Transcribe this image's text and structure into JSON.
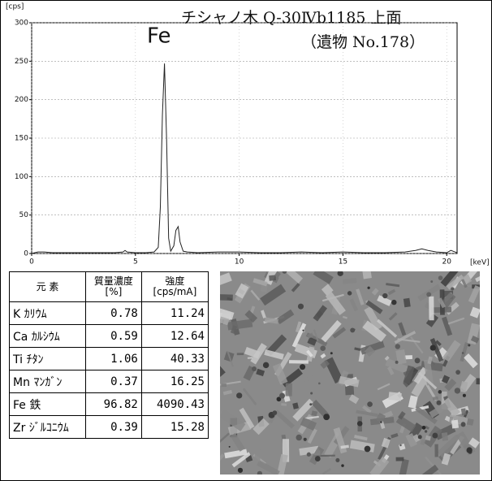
{
  "chart_data": {
    "type": "line",
    "title": "チシャノ木 Q-30Ⅳb1185 上面",
    "subtitle": "（遺物 No.178）",
    "annotation": "Fe",
    "y_label": "[cps]",
    "x_label": "[keV]",
    "color": "#222222",
    "grid": true,
    "xlim": [
      0,
      20.5
    ],
    "ylim": [
      0,
      300
    ],
    "xticks": [
      0,
      5,
      10,
      15,
      20
    ],
    "yticks": [
      0,
      50,
      100,
      150,
      200,
      250,
      300
    ],
    "x": [
      0,
      0.3,
      0.6,
      1.0,
      2,
      3,
      4,
      4.4,
      4.5,
      4.6,
      5,
      5.5,
      5.9,
      6.1,
      6.2,
      6.3,
      6.4,
      6.5,
      6.6,
      6.7,
      6.85,
      6.95,
      7.06,
      7.15,
      7.3,
      7.5,
      8,
      9,
      10,
      11,
      12,
      13,
      14,
      15,
      16,
      17,
      18,
      18.5,
      18.8,
      19.1,
      19.5,
      20,
      20.2,
      20.5
    ],
    "values": [
      0,
      2,
      2,
      1,
      1,
      1,
      1,
      2,
      4,
      2,
      1,
      1,
      2,
      8,
      60,
      180,
      247,
      150,
      20,
      3,
      10,
      30,
      35,
      15,
      3,
      2,
      1,
      2,
      2,
      1,
      1,
      2,
      1,
      2,
      1,
      1,
      2,
      4,
      6,
      4,
      2,
      1,
      4,
      1
    ]
  },
  "table": {
    "header": [
      [
        "元 素"
      ],
      [
        "質量濃度",
        "[%]"
      ],
      [
        "強度",
        "[cps/mA]"
      ]
    ],
    "rows": [
      [
        "K ｶﾘｳﾑ",
        "0.78",
        "11.24"
      ],
      [
        "Ca ｶﾙｼｳﾑ",
        "0.59",
        "12.64"
      ],
      [
        "Ti ﾁﾀﾝ",
        "1.06",
        "40.33"
      ],
      [
        "Mn ﾏﾝｶﾞﾝ",
        "0.37",
        "16.25"
      ],
      [
        "Fe 鉄",
        "96.82",
        "4090.43"
      ],
      [
        "Zr ｼﾞﾙｺﾆｳﾑ",
        "0.39",
        "15.28"
      ]
    ]
  }
}
